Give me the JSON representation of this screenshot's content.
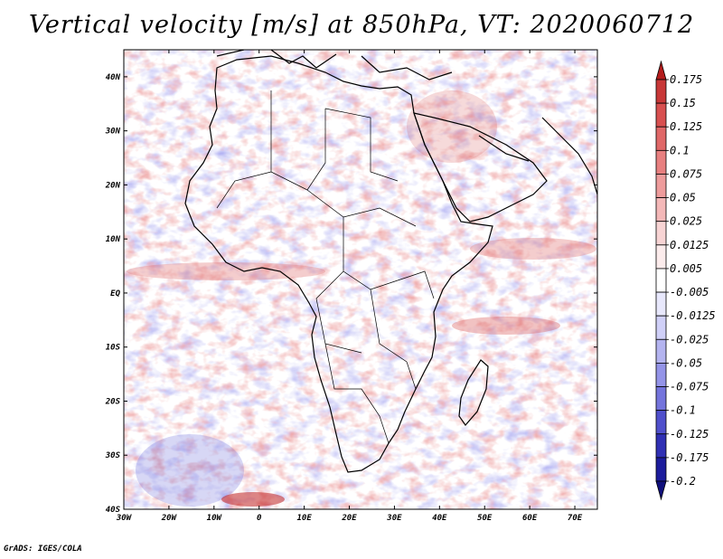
{
  "figure": {
    "title": "Vertical velocity [m/s] at 850hPa, VT: 2020060712",
    "footer": "GrADS: IGES/COLA"
  },
  "map": {
    "region": "Africa",
    "lon_range": [
      -30,
      75
    ],
    "lat_range": [
      -40,
      45
    ],
    "lat_ticks": [
      {
        "value": 40,
        "label": "40N"
      },
      {
        "value": 30,
        "label": "30N"
      },
      {
        "value": 20,
        "label": "20N"
      },
      {
        "value": 10,
        "label": "10N"
      },
      {
        "value": 0,
        "label": "EQ"
      },
      {
        "value": -10,
        "label": "10S"
      },
      {
        "value": -20,
        "label": "20S"
      },
      {
        "value": -30,
        "label": "30S"
      },
      {
        "value": -40,
        "label": "40S"
      }
    ],
    "lon_ticks": [
      {
        "value": -30,
        "label": "30W"
      },
      {
        "value": -20,
        "label": "20W"
      },
      {
        "value": -10,
        "label": "10W"
      },
      {
        "value": 0,
        "label": "0"
      },
      {
        "value": 10,
        "label": "10E"
      },
      {
        "value": 20,
        "label": "20E"
      },
      {
        "value": 30,
        "label": "30E"
      },
      {
        "value": 40,
        "label": "40E"
      },
      {
        "value": 50,
        "label": "50E"
      },
      {
        "value": 60,
        "label": "60E"
      },
      {
        "value": 70,
        "label": "70E"
      }
    ]
  },
  "colorbar": {
    "levels": [
      "0.175",
      "0.15",
      "0.125",
      "0.1",
      "0.075",
      "0.05",
      "0.025",
      "0.0125",
      "0.005",
      "-0.005",
      "-0.0125",
      "-0.025",
      "-0.05",
      "-0.075",
      "-0.1",
      "-0.125",
      "-0.175",
      "-0.2"
    ],
    "colors": [
      "#b41c1c",
      "#c83838",
      "#d85050",
      "#e06868",
      "#e88080",
      "#ee9c9c",
      "#f4b8b8",
      "#f8d4d4",
      "#fcecec",
      "#ffffff",
      "#e8e8fc",
      "#d0d0f8",
      "#b4b4f0",
      "#9494e8",
      "#7474dc",
      "#5050cc",
      "#3030b4",
      "#1c1c9c",
      "#10107c"
    ]
  },
  "colors": {
    "positive": "#d24b4b",
    "negative": "#6464dc",
    "coast": "#000000"
  }
}
